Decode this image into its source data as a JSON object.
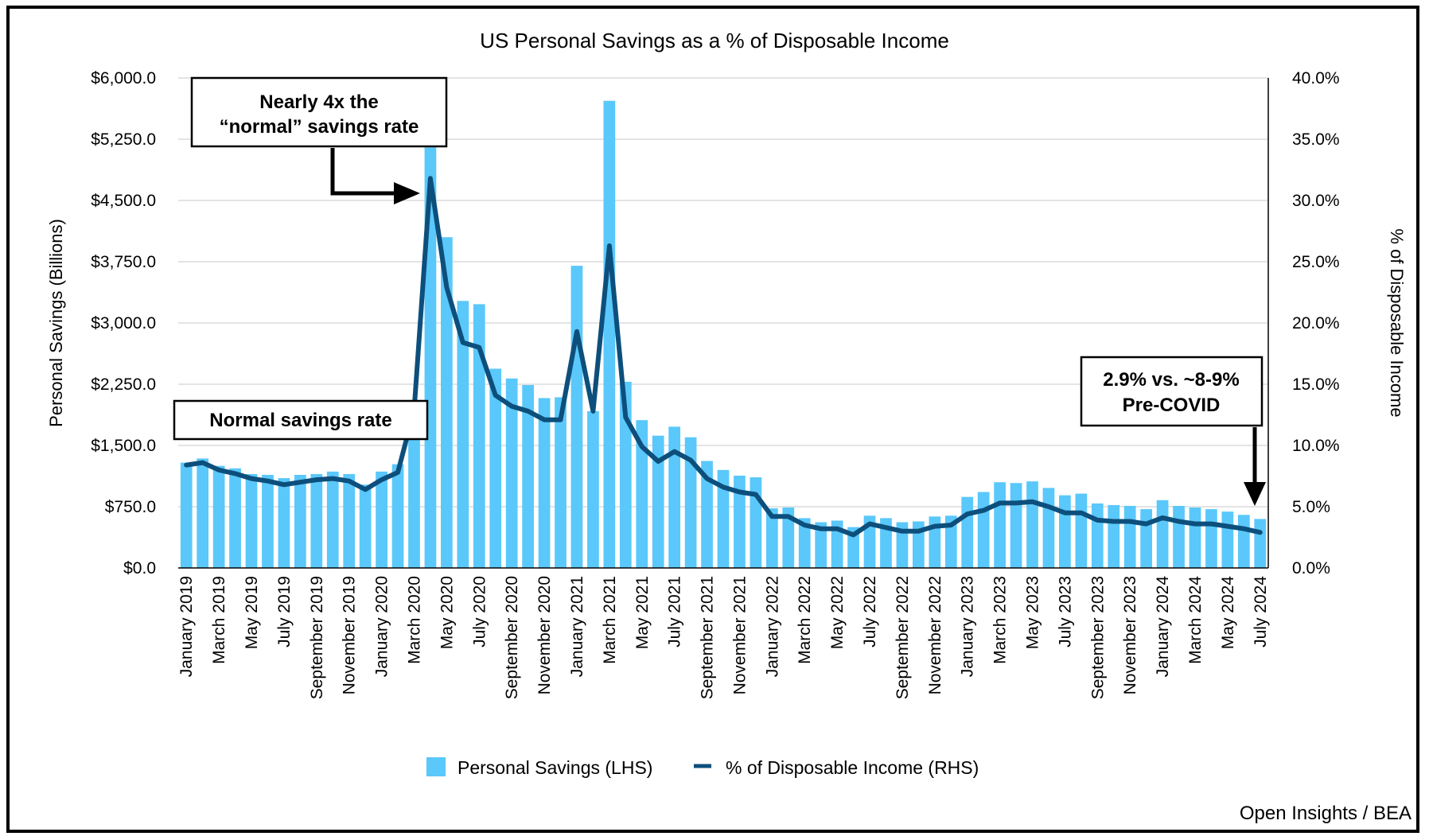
{
  "chart_data": {
    "type": "bar+line",
    "title": "US Personal Savings as a % of Disposable Income",
    "ylabel_left": "Personal Savings (Billions)",
    "ylabel_right": "% of Disposable Income",
    "ylim_left": [
      0,
      6000
    ],
    "ylim_right": [
      0,
      40
    ],
    "yticks_left": [
      "$0.0",
      "$750.0",
      "$1,500.0",
      "$2,250.0",
      "$3,000.0",
      "$3,750.0",
      "$4,500.0",
      "$5,250.0",
      "$6,000.0"
    ],
    "yticks_right": [
      "0.0%",
      "5.0%",
      "10.0%",
      "15.0%",
      "20.0%",
      "25.0%",
      "30.0%",
      "35.0%",
      "40.0%"
    ],
    "categories": [
      "January 2019",
      "February 2019",
      "March 2019",
      "April 2019",
      "May 2019",
      "June 2019",
      "July 2019",
      "August 2019",
      "September 2019",
      "October 2019",
      "November 2019",
      "December 2019",
      "January 2020",
      "February 2020",
      "March 2020",
      "April 2020",
      "May 2020",
      "June 2020",
      "July 2020",
      "August 2020",
      "September 2020",
      "October 2020",
      "November 2020",
      "December 2020",
      "January 2021",
      "February 2021",
      "March 2021",
      "April 2021",
      "May 2021",
      "June 2021",
      "July 2021",
      "August 2021",
      "September 2021",
      "October 2021",
      "November 2021",
      "December 2021",
      "January 2022",
      "February 2022",
      "March 2022",
      "April 2022",
      "May 2022",
      "June 2022",
      "July 2022",
      "August 2022",
      "September 2022",
      "October 2022",
      "November 2022",
      "December 2022",
      "January 2023",
      "February 2023",
      "March 2023",
      "April 2023",
      "May 2023",
      "June 2023",
      "July 2023",
      "August 2023",
      "September 2023",
      "October 2023",
      "November 2023",
      "December 2023",
      "January 2024",
      "February 2024",
      "March 2024",
      "April 2024",
      "May 2024",
      "June 2024",
      "July 2024"
    ],
    "tick_labels": [
      "January 2019",
      "March 2019",
      "May 2019",
      "July 2019",
      "September 2019",
      "November 2019",
      "January 2020",
      "March 2020",
      "May 2020",
      "July 2020",
      "September 2020",
      "November 2020",
      "January 2021",
      "March 2021",
      "May 2021",
      "July 2021",
      "September 2021",
      "November 2021",
      "January 2022",
      "March 2022",
      "May 2022",
      "July 2022",
      "September 2022",
      "November 2022",
      "January 2023",
      "March 2023",
      "May 2023",
      "July 2023",
      "September 2023",
      "November 2023",
      "January 2024",
      "March 2024",
      "May 2024",
      "July 2024"
    ],
    "series": [
      {
        "name": "Personal Savings (LHS)",
        "type": "bar",
        "axis": "left",
        "color": "#5ac8fa",
        "values": [
          1290,
          1340,
          1250,
          1220,
          1150,
          1140,
          1100,
          1140,
          1150,
          1180,
          1150,
          1020,
          1180,
          1270,
          1750,
          5150,
          4050,
          3270,
          3230,
          2440,
          2320,
          2240,
          2080,
          2090,
          3700,
          1920,
          5720,
          2280,
          1810,
          1620,
          1730,
          1600,
          1310,
          1200,
          1130,
          1110,
          730,
          740,
          610,
          560,
          580,
          500,
          640,
          610,
          560,
          570,
          630,
          640,
          870,
          930,
          1050,
          1040,
          1060,
          980,
          890,
          910,
          790,
          770,
          760,
          720,
          830,
          760,
          740,
          720,
          690,
          650,
          600
        ]
      },
      {
        "name": "% of Disposable Income (RHS)",
        "type": "line",
        "axis": "right",
        "color": "#0d4f7c",
        "values": [
          8.4,
          8.6,
          8.0,
          7.7,
          7.3,
          7.1,
          6.8,
          7.0,
          7.2,
          7.3,
          7.1,
          6.4,
          7.2,
          7.8,
          12.9,
          31.8,
          22.9,
          18.4,
          18.0,
          14.1,
          13.2,
          12.8,
          12.1,
          12.1,
          19.3,
          12.8,
          26.3,
          12.3,
          9.9,
          8.7,
          9.5,
          8.8,
          7.3,
          6.6,
          6.2,
          6.0,
          4.2,
          4.2,
          3.5,
          3.2,
          3.2,
          2.7,
          3.6,
          3.3,
          3.0,
          3.0,
          3.4,
          3.5,
          4.4,
          4.7,
          5.3,
          5.3,
          5.4,
          5.0,
          4.5,
          4.5,
          3.9,
          3.8,
          3.8,
          3.6,
          4.1,
          3.8,
          3.6,
          3.6,
          3.4,
          3.2,
          2.9
        ]
      }
    ],
    "legend_position": "bottom",
    "grid": true
  },
  "legend": {
    "bar_label": "Personal Savings (LHS)",
    "line_label": "% of Disposable Income (RHS)"
  },
  "callouts": {
    "peak_line1": "Nearly 4x the",
    "peak_line2": "“normal” savings rate",
    "normal": "Normal savings rate",
    "current_line1": "2.9% vs. ~8-9%",
    "current_line2": "Pre-COVID"
  },
  "source": "Open Insights / BEA",
  "colors": {
    "bar": "#5ac8fa",
    "line": "#0d4f7c",
    "grid": "#c8c8c8"
  }
}
